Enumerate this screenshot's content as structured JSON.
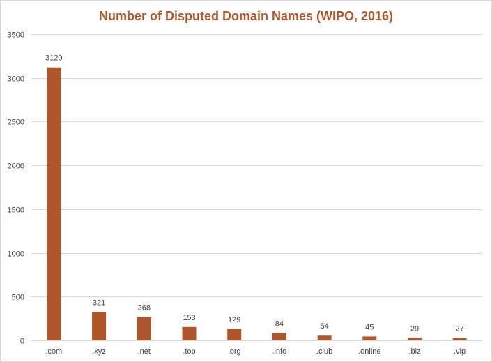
{
  "chart_data": {
    "type": "bar",
    "title": "Number of Disputed Domain Names (WIPO, 2016)",
    "xlabel": "",
    "ylabel": "",
    "categories": [
      ".com",
      ".xyz",
      ".net",
      ".top",
      ".org",
      ".info",
      ".club",
      ".online",
      ".biz",
      ".vip"
    ],
    "values": [
      3120,
      321,
      268,
      153,
      129,
      84,
      54,
      45,
      29,
      27
    ],
    "data_labels": [
      "3120",
      "321",
      "268",
      "153",
      "129",
      "84",
      "54",
      "45",
      "29",
      "27"
    ],
    "ylim": [
      0,
      3500
    ],
    "yticks": [
      0,
      500,
      1000,
      1500,
      2000,
      2500,
      3000,
      3500
    ],
    "ytick_labels": [
      "0",
      "500",
      "1000",
      "1500",
      "2000",
      "2500",
      "3000",
      "3500"
    ],
    "grid": true,
    "legend": "none",
    "bar_color": "#b0562b",
    "title_color": "#b0562b"
  }
}
